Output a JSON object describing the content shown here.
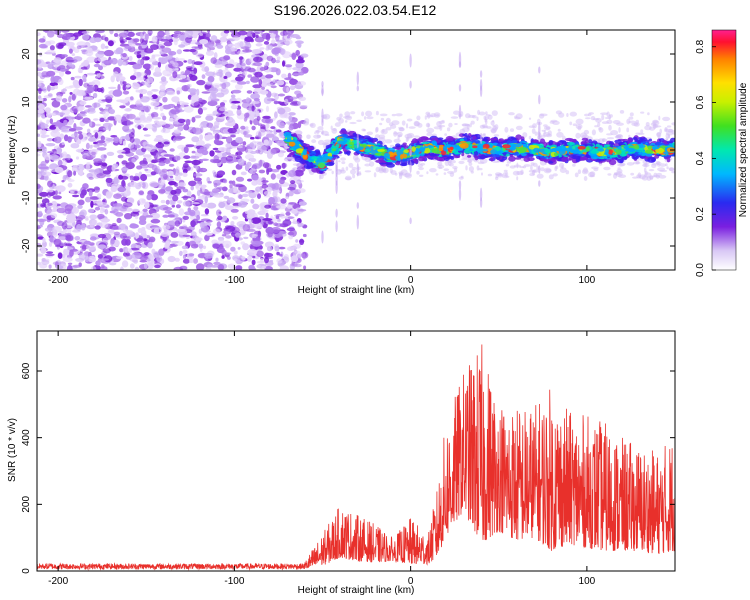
{
  "title": "S196.2026.022.03.54.E12",
  "chart_data": [
    {
      "type": "heatmap",
      "name": "spectrogram",
      "xlabel": "Height of straight line (km)",
      "ylabel": "Frequency (Hz)",
      "xlim": [
        -212,
        150
      ],
      "ylim": [
        -25,
        25
      ],
      "xticks": [
        -200,
        -100,
        0,
        100
      ],
      "yticks": [
        -20,
        -10,
        0,
        10,
        20
      ],
      "noise_region_x": [
        -212,
        -60
      ],
      "signal_band": [
        {
          "x": -70,
          "y": 2.5
        },
        {
          "x": -60,
          "y": -1
        },
        {
          "x": -50,
          "y": -3
        },
        {
          "x": -40,
          "y": 2
        },
        {
          "x": -30,
          "y": 1
        },
        {
          "x": -20,
          "y": 0
        },
        {
          "x": -10,
          "y": -1.5
        },
        {
          "x": 0,
          "y": -0.5
        },
        {
          "x": 10,
          "y": 0.5
        },
        {
          "x": 20,
          "y": 0
        },
        {
          "x": 30,
          "y": 1
        },
        {
          "x": 40,
          "y": 0.5
        },
        {
          "x": 50,
          "y": 0
        },
        {
          "x": 60,
          "y": 0.5
        },
        {
          "x": 70,
          "y": 0
        },
        {
          "x": 80,
          "y": -0.5
        },
        {
          "x": 90,
          "y": 0
        },
        {
          "x": 100,
          "y": 0
        },
        {
          "x": 110,
          "y": -0.5
        },
        {
          "x": 120,
          "y": 0
        },
        {
          "x": 130,
          "y": 0.5
        },
        {
          "x": 140,
          "y": 0
        },
        {
          "x": 150,
          "y": 0
        }
      ],
      "colorbar": {
        "label": "Normalized spectral amplitude",
        "range": [
          0,
          0.86
        ],
        "ticks": [
          0.0,
          0.2,
          0.4,
          0.6,
          0.8
        ],
        "tick_labels": [
          "0.0",
          "0.2",
          "0.4",
          "0.6",
          "0.8"
        ]
      }
    },
    {
      "type": "line",
      "name": "snr",
      "xlabel": "Height of straight line (km)",
      "ylabel": "SNR (10 * v/v)",
      "xlim": [
        -212,
        150
      ],
      "ylim": [
        0,
        720
      ],
      "xticks": [
        -200,
        -100,
        0,
        100
      ],
      "yticks": [
        0,
        200,
        400,
        600
      ],
      "color": "#e8302b",
      "envelope": [
        {
          "x": -212,
          "lo": 5,
          "hi": 30
        },
        {
          "x": -60,
          "lo": 5,
          "hi": 30
        },
        {
          "x": -48,
          "lo": 20,
          "hi": 130
        },
        {
          "x": -40,
          "lo": 40,
          "hi": 200
        },
        {
          "x": -30,
          "lo": 30,
          "hi": 170
        },
        {
          "x": -20,
          "lo": 25,
          "hi": 140
        },
        {
          "x": -10,
          "lo": 30,
          "hi": 100
        },
        {
          "x": 0,
          "lo": 20,
          "hi": 160
        },
        {
          "x": 10,
          "lo": 20,
          "hi": 110
        },
        {
          "x": 15,
          "lo": 40,
          "hi": 250
        },
        {
          "x": 20,
          "lo": 100,
          "hi": 450
        },
        {
          "x": 30,
          "lo": 180,
          "hi": 600
        },
        {
          "x": 40,
          "lo": 80,
          "hi": 690
        },
        {
          "x": 50,
          "lo": 120,
          "hi": 520
        },
        {
          "x": 60,
          "lo": 90,
          "hi": 500
        },
        {
          "x": 70,
          "lo": 100,
          "hi": 500
        },
        {
          "x": 80,
          "lo": 60,
          "hi": 560
        },
        {
          "x": 90,
          "lo": 80,
          "hi": 480
        },
        {
          "x": 100,
          "lo": 70,
          "hi": 470
        },
        {
          "x": 110,
          "lo": 60,
          "hi": 450
        },
        {
          "x": 120,
          "lo": 60,
          "hi": 400
        },
        {
          "x": 130,
          "lo": 60,
          "hi": 380
        },
        {
          "x": 140,
          "lo": 50,
          "hi": 360
        },
        {
          "x": 150,
          "lo": 60,
          "hi": 420
        }
      ]
    }
  ]
}
